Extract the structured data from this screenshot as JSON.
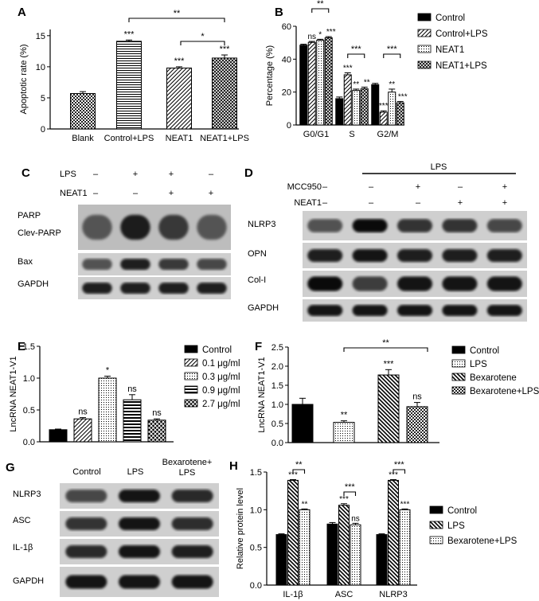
{
  "chart_data": [
    {
      "panel": "A",
      "type": "bar",
      "ylabel": "Apoptotic rate (%)",
      "ylim": [
        0,
        16
      ],
      "yticks": [
        0,
        5,
        10,
        15
      ],
      "categories": [
        "Blank",
        "Control+LPS",
        "NEAT1",
        "NEAT1+LPS"
      ],
      "values": [
        5.7,
        14.1,
        9.8,
        11.4
      ],
      "errors": [
        0.3,
        0.2,
        0.2,
        0.5
      ],
      "bar_labels": [
        "",
        "***",
        "***",
        "***"
      ],
      "brackets": [
        {
          "from": 1,
          "to": 3,
          "label": "**"
        },
        {
          "from": 2,
          "to": 3,
          "label": "*"
        }
      ]
    },
    {
      "panel": "B",
      "type": "bar",
      "ylabel": "Percentage (%)",
      "ylim": [
        0,
        60
      ],
      "yticks": [
        0,
        20,
        40,
        60
      ],
      "categories": [
        "G0/G1",
        "S",
        "G2/M"
      ],
      "series": [
        {
          "name": "Control",
          "values": [
            48.5,
            16.0,
            24.5
          ],
          "errors": [
            0.6,
            1.0,
            0.8
          ],
          "labels": [
            "",
            "",
            ""
          ]
        },
        {
          "name": "Control+LPS",
          "values": [
            50.2,
            30.5,
            7.8
          ],
          "errors": [
            0.6,
            1.2,
            0.8
          ],
          "labels": [
            "ns",
            "***",
            "***"
          ]
        },
        {
          "name": "NEAT1",
          "values": [
            51.5,
            21.0,
            20.0
          ],
          "errors": [
            0.6,
            0.8,
            1.8
          ],
          "labels": [
            "*",
            "**",
            "**"
          ]
        },
        {
          "name": "NEAT1+LPS",
          "values": [
            53.0,
            22.0,
            13.5
          ],
          "errors": [
            0.7,
            1.0,
            0.8
          ],
          "labels": [
            "***",
            "**",
            "***"
          ]
        }
      ],
      "brackets": [
        {
          "group": 0,
          "from": 1,
          "to": 3,
          "label": "**"
        },
        {
          "group": 1,
          "from": 1,
          "to": 3,
          "label": "***"
        },
        {
          "group": 2,
          "from": 1,
          "to": 3,
          "label": "***"
        }
      ]
    },
    {
      "panel": "E",
      "type": "bar",
      "ylabel": "LncRNA NEAT1-V1",
      "ylim": [
        0,
        1.5
      ],
      "yticks": [
        "0.0",
        "0.5",
        "1.0",
        "1.5"
      ],
      "series": [
        {
          "name": "Control",
          "value": 0.19,
          "error": 0.01,
          "label": ""
        },
        {
          "name": "0.1 μg/ml",
          "value": 0.36,
          "error": 0.02,
          "label": "ns"
        },
        {
          "name": "0.3 μg/ml",
          "value": 1.0,
          "error": 0.03,
          "label": "*"
        },
        {
          "name": "0.9 μg/ml",
          "value": 0.66,
          "error": 0.08,
          "label": "ns"
        },
        {
          "name": "2.7 μg/ml",
          "value": 0.34,
          "error": 0.02,
          "label": "ns"
        }
      ]
    },
    {
      "panel": "F",
      "type": "bar",
      "ylabel": "LncRNA NEAT1-V1",
      "ylim": [
        0,
        2.5
      ],
      "yticks": [
        "0.0",
        "0.5",
        "1.0",
        "1.5",
        "2.0",
        "2.5"
      ],
      "series": [
        {
          "name": "Control",
          "value": 1.0,
          "error": 0.16,
          "label": ""
        },
        {
          "name": "LPS",
          "value": 0.53,
          "error": 0.04,
          "label": "**"
        },
        {
          "name": "Bexarotene",
          "value": 1.77,
          "error": 0.14,
          "label": "***"
        },
        {
          "name": "Bexarotene+LPS",
          "value": 0.94,
          "error": 0.11,
          "label": "ns"
        }
      ],
      "brackets": [
        {
          "from": 1,
          "to": 3,
          "label": "**"
        }
      ]
    },
    {
      "panel": "H",
      "type": "bar",
      "ylabel": "Relative protein level",
      "ylim": [
        0,
        1.5
      ],
      "yticks": [
        "0.0",
        "0.5",
        "1.0",
        "1.5"
      ],
      "categories": [
        "IL-1β",
        "ASC",
        "NLRP3"
      ],
      "series": [
        {
          "name": "Control",
          "values": [
            0.67,
            0.81,
            0.67
          ],
          "errors": [
            0.01,
            0.02,
            0.01
          ],
          "labels": [
            "",
            "",
            ""
          ]
        },
        {
          "name": "LPS",
          "values": [
            1.39,
            1.06,
            1.39
          ],
          "errors": [
            0.01,
            0.02,
            0.01
          ],
          "labels": [
            "***",
            "***",
            "***"
          ]
        },
        {
          "name": "Bexarotene+LPS",
          "values": [
            1.0,
            0.8,
            1.0
          ],
          "errors": [
            0.01,
            0.02,
            0.01
          ],
          "labels": [
            "**",
            "ns",
            "***"
          ]
        }
      ],
      "brackets": [
        {
          "group": 0,
          "from": 1,
          "to": 2,
          "label": "**"
        },
        {
          "group": 1,
          "from": 1,
          "to": 2,
          "label": "***"
        },
        {
          "group": 2,
          "from": 1,
          "to": 2,
          "label": "***"
        }
      ]
    }
  ],
  "blots": {
    "C": {
      "panel": "C",
      "conditions": [
        {
          "name": "LPS",
          "signs": [
            "–",
            "+",
            "+",
            "–"
          ]
        },
        {
          "name": "NEAT1",
          "signs": [
            "–",
            "–",
            "+",
            "+"
          ]
        }
      ],
      "bands": [
        "PARP",
        "Clev-PARP",
        "Bax",
        "GAPDH"
      ]
    },
    "D": {
      "panel": "D",
      "header": "LPS",
      "conditions": [
        {
          "name": "MCC950",
          "signs": [
            "–",
            "–",
            "+",
            "–",
            "+"
          ]
        },
        {
          "name": "NEAT1",
          "signs": [
            "–",
            "–",
            "–",
            "+",
            "+"
          ]
        }
      ],
      "bands": [
        "NLRP3",
        "OPN",
        "Col-I",
        "GAPDH"
      ]
    },
    "G": {
      "panel": "G",
      "columns": [
        "Control",
        "LPS",
        "Bexarotene+",
        "LPS"
      ],
      "bands": [
        "NLRP3",
        "ASC",
        "IL-1β",
        "GAPDH"
      ]
    }
  }
}
